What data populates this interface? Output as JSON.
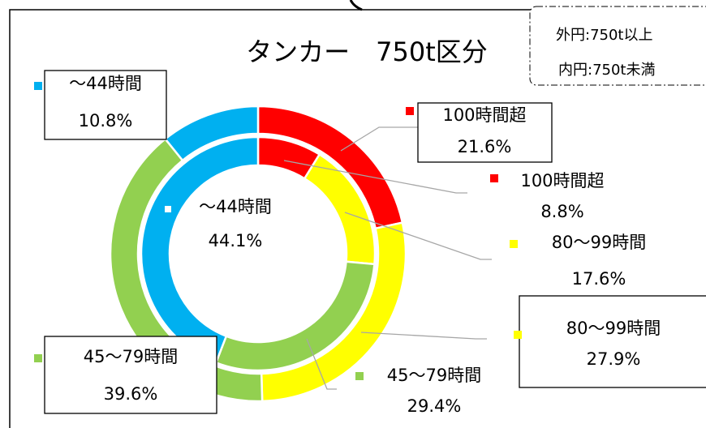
{
  "chart_data": {
    "type": "donut",
    "title": "タンカー　750t区分",
    "categories": [
      "100時間超",
      "80〜99時間",
      "45〜79時間",
      "〜44時間"
    ],
    "series": [
      {
        "name": "外円:750t以上",
        "colors": [
          "#ff0000",
          "#ffff00",
          "#92d050",
          "#00b0f0"
        ],
        "values": [
          21.6,
          27.9,
          39.6,
          10.8
        ],
        "value_labels": [
          "21.6%",
          "27.9%",
          "39.6%",
          "10.8%"
        ]
      },
      {
        "name": "内円:750t未満",
        "colors": [
          "#ff0000",
          "#ffff00",
          "#92d050",
          "#00b0f0"
        ],
        "values": [
          8.8,
          17.6,
          29.4,
          44.1
        ],
        "value_labels": [
          "8.8%",
          "17.6%",
          "29.4%",
          "44.1%"
        ]
      }
    ]
  }
}
